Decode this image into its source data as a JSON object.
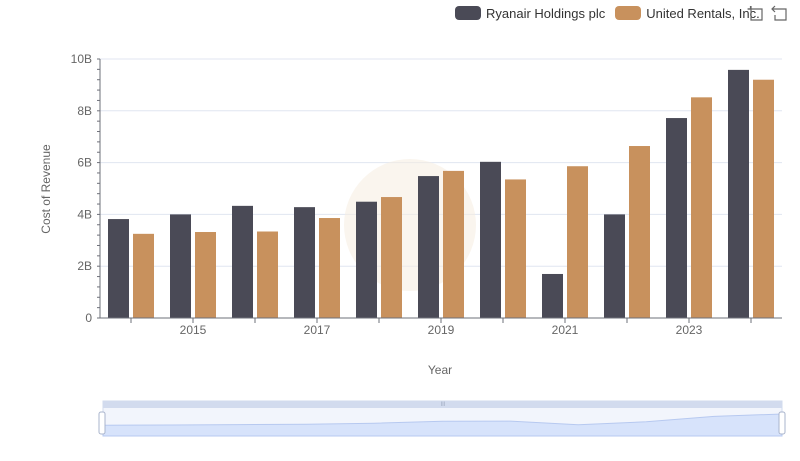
{
  "chart_data": {
    "type": "bar",
    "title": "",
    "xlabel": "Year",
    "ylabel": "Cost of Revenue",
    "x": [
      2014,
      2015,
      2016,
      2017,
      2018,
      2019,
      2020,
      2021,
      2022,
      2023,
      2024
    ],
    "x_tick_labels": [
      "2015",
      "2017",
      "2019",
      "2021",
      "2023"
    ],
    "y_tick_labels": [
      "0",
      "2B",
      "4B",
      "6B",
      "8B",
      "10B"
    ],
    "ylim": [
      0,
      10000000000
    ],
    "grid": true,
    "legend_position": "top-right",
    "series": [
      {
        "name": "Ryanair Holdings plc",
        "color": "#4a4a56",
        "values": [
          3820000000,
          4000000000,
          4330000000,
          4280000000,
          4490000000,
          5480000000,
          6030000000,
          1700000000,
          4000000000,
          7720000000,
          9580000000
        ]
      },
      {
        "name": "United Rentals, Inc.",
        "color": "#c8915d",
        "values": [
          3250000000,
          3320000000,
          3340000000,
          3860000000,
          4670000000,
          5680000000,
          5350000000,
          5860000000,
          6640000000,
          8520000000,
          9200000000
        ]
      }
    ]
  }
}
